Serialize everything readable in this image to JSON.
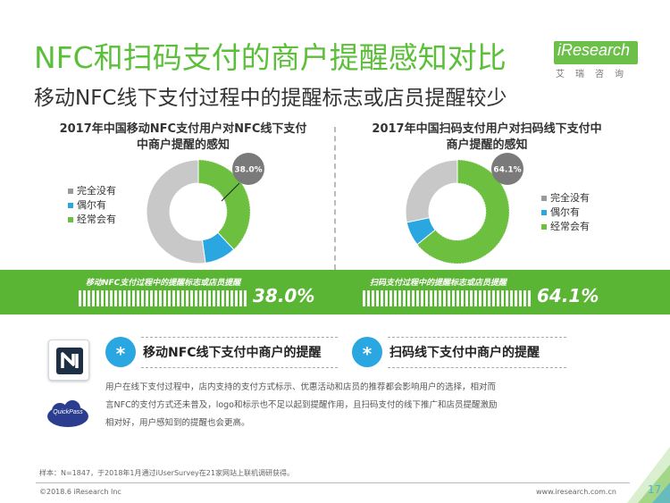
{
  "header": {
    "title": "NFC和扫码支付的商户提醒感知对比",
    "subtitle": "移动NFC线下支付过程中的提醒标志或店员提醒较少"
  },
  "logo": {
    "brand": "iResearch",
    "sub": "艾瑞咨询"
  },
  "colors": {
    "green": "#6cbf3f",
    "blue": "#2aa6e0",
    "gray": "#c8c8c8",
    "badge": "#777777"
  },
  "chart_data": [
    {
      "type": "pie",
      "title": "2017年中国移动NFC支付用户对NFC线下支付中商户提醒的感知",
      "title_lines": [
        "2017年中国移动NFC支付用户对NFC线下支付",
        "中商户提醒的感知"
      ],
      "categories": [
        "完全没有",
        "偶尔有",
        "经常会有"
      ],
      "values": [
        52.2,
        9.8,
        38.0
      ],
      "colors": [
        "#c8c8c8",
        "#2aa6e0",
        "#6cbf3f"
      ],
      "highlight_label": "38.0%",
      "legend": "left"
    },
    {
      "type": "pie",
      "title": "2017年中国扫码支付用户对扫码线下支付中商户提醒的感知",
      "title_lines": [
        "2017年中国扫码支付用户对扫码线下支付中",
        "商户提醒的感知"
      ],
      "categories": [
        "完全没有",
        "偶尔有",
        "经常会有"
      ],
      "values": [
        28.3,
        7.6,
        64.1
      ],
      "colors": [
        "#c8c8c8",
        "#2aa6e0",
        "#6cbf3f"
      ],
      "highlight_label": "64.1%",
      "legend": "right"
    }
  ],
  "stats": [
    {
      "label": "移动NFC支付过程中的提醒标志或店员提醒",
      "value": "38.0%"
    },
    {
      "label": "扫码支付过程中的提醒标志或店员提醒",
      "value": "64.1%"
    }
  ],
  "features": [
    {
      "icon": "*",
      "label": "移动NFC线下支付中商户的提醒"
    },
    {
      "icon": "*",
      "label": "扫码线下支付中商户的提醒"
    }
  ],
  "quickpass_text": "QuickPass",
  "description_lines": [
    "用户在线下支付过程中，店内支持的支付方式标示、优惠活动和店员的推荐都会影响用户的选择，相对而",
    "言NFC的支付方式还未普及，logo和标示也不足以起到提醒作用，且扫码支付的线下推广和店员提醒激励",
    "相对好，用户感知到的提醒也会更高。"
  ],
  "footer": {
    "note": "样本：N=1847，于2018年1月通过iUserSurvey在21家网站上联机调研获得。",
    "copyright": "©2018.6 iResearch Inc",
    "website": "www.iresearch.com.cn",
    "page": "17"
  }
}
